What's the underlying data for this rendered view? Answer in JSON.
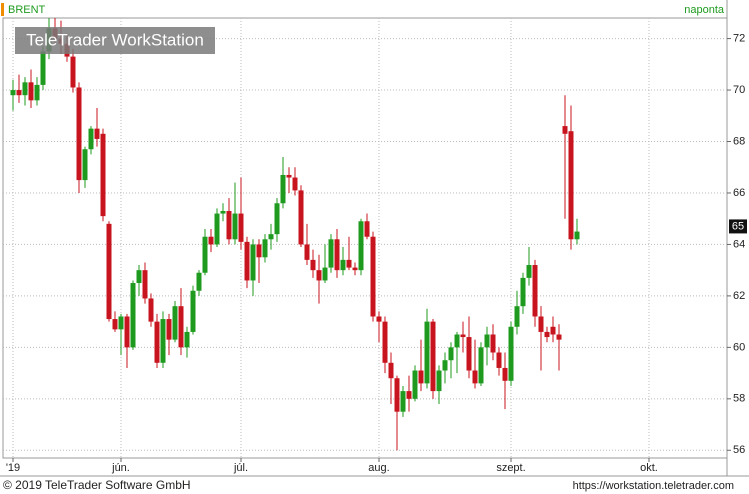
{
  "chart_data": {
    "type": "candlestick",
    "title": "BRENT",
    "period": "naponta",
    "watermark": "TeleTrader WorkStation",
    "footer_left": "© 2019 TeleTrader Software GmbH",
    "footer_right": "https://workstation.teletrader.com",
    "up_color": "#1e9b1e",
    "down_color": "#c8141e",
    "ylim": [
      55.7,
      72.8
    ],
    "yticks": [
      56,
      58,
      60,
      62,
      64,
      66,
      68,
      70,
      72
    ],
    "grid": true,
    "last_price": {
      "value": 64.7,
      "label": "65"
    },
    "categories": [
      "'19",
      null,
      null,
      null,
      null,
      null,
      null,
      null,
      null,
      null,
      null,
      null,
      null,
      null,
      null,
      null,
      null,
      null,
      "jún.",
      null,
      null,
      null,
      null,
      null,
      null,
      null,
      null,
      null,
      null,
      null,
      null,
      null,
      null,
      null,
      null,
      null,
      null,
      null,
      "júl.",
      null,
      null,
      null,
      null,
      null,
      null,
      null,
      null,
      null,
      null,
      null,
      null,
      null,
      null,
      null,
      null,
      null,
      null,
      null,
      null,
      null,
      null,
      "aug.",
      null,
      null,
      null,
      null,
      null,
      null,
      null,
      null,
      null,
      null,
      null,
      null,
      null,
      null,
      null,
      null,
      null,
      null,
      null,
      null,
      null,
      "szept.",
      null,
      null,
      null,
      null,
      null,
      null,
      null,
      null,
      null,
      null,
      null,
      null,
      null,
      null,
      null,
      null,
      null,
      null,
      null,
      null,
      null,
      null,
      "okt.",
      null,
      null,
      null,
      null,
      null,
      null,
      null,
      null,
      null,
      null,
      null,
      null,
      null
    ],
    "open": [
      69.8,
      70.0,
      69.8,
      70.3,
      69.6,
      70.2,
      71.5,
      72.4,
      72.0,
      71.8,
      71.3,
      70.1,
      66.5,
      67.7,
      68.5,
      68.3,
      64.8,
      61.1,
      60.7,
      61.2,
      60.0,
      62.5,
      63.0,
      61.9,
      61.0,
      59.4,
      61.1,
      60.3,
      61.6,
      60.0,
      60.6,
      62.2,
      62.9,
      64.3,
      64.0,
      65.2,
      65.3,
      64.2,
      65.2,
      64.1,
      62.6,
      64.0,
      63.5,
      64.2,
      64.4,
      65.6,
      66.7,
      66.6,
      66.1,
      64.0,
      63.4,
      63.0,
      62.6,
      63.1,
      64.2,
      63.0,
      63.4,
      63.1,
      63.0,
      64.9,
      64.3,
      61.2,
      61.0,
      59.4,
      58.8,
      57.5,
      58.3,
      58.0,
      59.1,
      58.6,
      61.0,
      58.3,
      59.1,
      59.5,
      60.0,
      60.5,
      60.4,
      59.1,
      58.6,
      60.0,
      60.5,
      59.8,
      59.2,
      58.7,
      60.8,
      61.6,
      62.7,
      63.2,
      61.2,
      60.6,
      60.8,
      60.5,
      68.6,
      68.4,
      64.2,
      null,
      null,
      null,
      null,
      null,
      null,
      null,
      null,
      null,
      null,
      null,
      null,
      null,
      null,
      null,
      null,
      null,
      null,
      null,
      null,
      null,
      null,
      null,
      null,
      null
    ],
    "high": [
      70.4,
      70.6,
      70.5,
      70.8,
      70.5,
      71.7,
      72.8,
      72.8,
      72.7,
      72.2,
      71.6,
      70.3,
      67.8,
      68.6,
      69.3,
      68.5,
      64.9,
      61.4,
      61.3,
      61.3,
      62.6,
      63.2,
      63.3,
      62.1,
      61.3,
      61.4,
      61.3,
      61.8,
      62.3,
      60.8,
      62.4,
      63.0,
      64.6,
      64.6,
      65.4,
      65.6,
      65.8,
      66.4,
      66.6,
      64.3,
      64.2,
      64.2,
      64.4,
      64.8,
      65.8,
      67.4,
      67.0,
      67.0,
      66.3,
      64.8,
      63.8,
      63.6,
      64.0,
      64.4,
      64.6,
      63.9,
      64.3,
      63.3,
      65.0,
      65.2,
      64.5,
      61.4,
      61.2,
      59.8,
      58.9,
      58.5,
      58.9,
      59.3,
      60.3,
      61.5,
      61.1,
      59.3,
      59.8,
      60.2,
      60.6,
      61.0,
      61.2,
      60.3,
      60.2,
      60.8,
      60.9,
      60.0,
      59.8,
      61.0,
      62.2,
      62.9,
      63.9,
      63.4,
      61.6,
      60.8,
      61.2,
      60.9,
      69.8,
      69.4,
      65.0,
      null,
      null,
      null,
      null,
      null,
      null,
      null,
      null,
      null,
      null,
      null,
      null,
      null,
      null,
      null,
      null,
      null,
      null,
      null,
      null,
      null,
      null,
      null,
      null,
      null
    ],
    "low": [
      69.2,
      69.5,
      69.4,
      69.3,
      69.4,
      70.0,
      71.2,
      71.8,
      71.4,
      71.1,
      69.9,
      66.0,
      66.2,
      67.5,
      67.8,
      64.9,
      61.0,
      60.6,
      59.7,
      59.2,
      59.9,
      62.0,
      61.7,
      60.8,
      59.2,
      59.2,
      59.7,
      60.2,
      59.7,
      59.6,
      60.5,
      62.0,
      62.8,
      63.7,
      63.9,
      64.9,
      64.0,
      64.0,
      63.8,
      62.3,
      62.0,
      62.5,
      63.3,
      63.8,
      64.1,
      65.4,
      66.0,
      65.9,
      63.9,
      63.2,
      62.7,
      61.7,
      62.5,
      62.9,
      62.7,
      62.8,
      63.0,
      62.8,
      62.8,
      64.2,
      61.0,
      60.2,
      59.0,
      57.8,
      56.0,
      57.3,
      57.5,
      57.9,
      58.3,
      58.4,
      58.0,
      57.8,
      58.6,
      58.8,
      59.0,
      59.8,
      58.8,
      58.4,
      58.5,
      59.3,
      59.5,
      58.9,
      57.6,
      58.5,
      60.5,
      61.3,
      62.4,
      60.8,
      59.1,
      60.2,
      60.2,
      59.1,
      65.0,
      63.8,
      64.0,
      null,
      null,
      null,
      null,
      null,
      null,
      null,
      null,
      null,
      null,
      null,
      null,
      null,
      null,
      null,
      null,
      null,
      null,
      null,
      null,
      null,
      null,
      null,
      null,
      null
    ],
    "close": [
      70.0,
      69.8,
      70.3,
      69.6,
      70.2,
      71.5,
      72.4,
      72.0,
      71.8,
      71.3,
      70.1,
      66.5,
      67.7,
      68.5,
      68.1,
      65.1,
      61.1,
      60.7,
      61.2,
      60.0,
      62.5,
      63.0,
      61.9,
      61.0,
      59.4,
      61.1,
      60.3,
      61.6,
      60.0,
      60.6,
      62.2,
      62.9,
      64.3,
      64.0,
      65.2,
      65.3,
      64.2,
      65.2,
      64.1,
      62.6,
      64.0,
      63.5,
      64.2,
      64.4,
      65.6,
      66.7,
      66.6,
      66.1,
      64.0,
      63.4,
      63.0,
      62.6,
      63.1,
      64.2,
      63.0,
      63.4,
      63.1,
      63.0,
      64.9,
      64.3,
      61.2,
      61.0,
      59.4,
      58.8,
      57.5,
      58.3,
      58.0,
      59.1,
      58.6,
      61.0,
      58.3,
      59.1,
      59.5,
      60.0,
      60.5,
      60.4,
      59.1,
      58.6,
      60.0,
      60.5,
      59.8,
      59.2,
      58.7,
      60.8,
      61.6,
      62.7,
      63.2,
      61.2,
      60.6,
      60.4,
      60.5,
      60.3,
      68.3,
      64.2,
      64.5,
      null,
      null,
      null,
      null,
      null,
      null,
      null,
      null,
      null,
      null,
      null,
      null,
      null,
      null,
      null,
      null,
      null,
      null,
      null,
      null,
      null,
      null,
      null,
      null,
      null
    ]
  }
}
